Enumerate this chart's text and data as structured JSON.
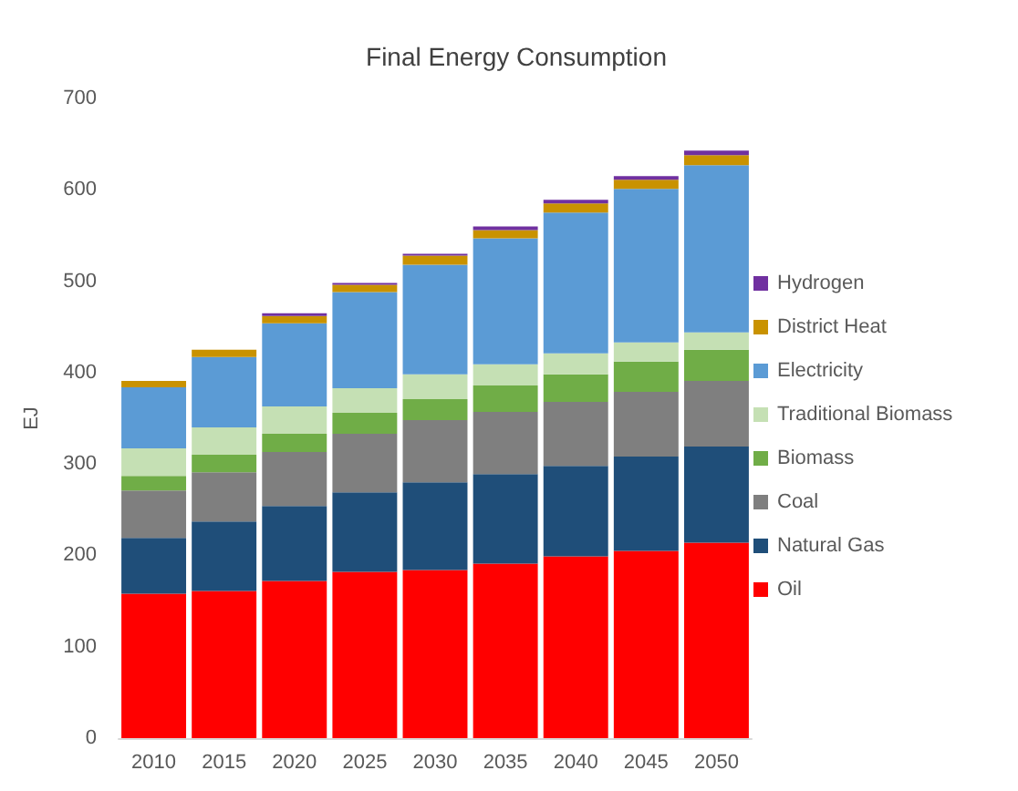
{
  "chart_data": {
    "type": "bar",
    "title": "Final Energy Consumption",
    "ylabel": "EJ",
    "categories": [
      "2010",
      "2015",
      "2020",
      "2025",
      "2030",
      "2035",
      "2040",
      "2045",
      "2050"
    ],
    "stacked": true,
    "ylim": [
      0,
      700
    ],
    "yticks": [
      0,
      100,
      200,
      300,
      400,
      500,
      600,
      700
    ],
    "grid": false,
    "legend": "right",
    "series": [
      {
        "name": "Oil",
        "color": "#ff0000",
        "values": [
          158,
          161,
          172,
          182,
          184,
          191,
          199,
          205,
          214
        ]
      },
      {
        "name": "Natural Gas",
        "color": "#1f4e79",
        "values": [
          61,
          76,
          82,
          87,
          96,
          98,
          99,
          103,
          105
        ]
      },
      {
        "name": "Coal",
        "color": "#7f7f7f",
        "values": [
          52,
          54,
          59,
          64,
          68,
          68,
          70,
          71,
          72
        ]
      },
      {
        "name": "Biomass",
        "color": "#70ad47",
        "values": [
          16,
          19,
          20,
          23,
          23,
          29,
          30,
          33,
          34
        ]
      },
      {
        "name": "Traditional Biomass",
        "color": "#c5e0b4",
        "values": [
          30,
          30,
          30,
          27,
          27,
          23,
          23,
          21,
          19
        ]
      },
      {
        "name": "Electricity",
        "color": "#5b9bd5",
        "values": [
          67,
          77,
          91,
          105,
          120,
          138,
          154,
          168,
          183
        ]
      },
      {
        "name": "District Heat",
        "color": "#c99200",
        "values": [
          7,
          8,
          8,
          8,
          10,
          9,
          10,
          10,
          11
        ]
      },
      {
        "name": "Hydrogen",
        "color": "#7030a0",
        "values": [
          0,
          0,
          3,
          2,
          2,
          4,
          4,
          4,
          5
        ]
      }
    ]
  }
}
